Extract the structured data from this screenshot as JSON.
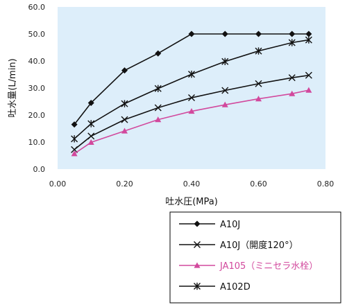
{
  "chart_data": {
    "type": "line",
    "title": "",
    "xlabel": "吐水圧(MPa)",
    "ylabel": "吐水量(L/min)",
    "xlim": [
      0.0,
      0.8
    ],
    "ylim": [
      0.0,
      60.0
    ],
    "x_ticks": [
      0.0,
      0.2,
      0.4,
      0.6,
      0.8
    ],
    "x_tick_labels": [
      "0.00",
      "0.20",
      "0.40",
      "0.60",
      "0.80"
    ],
    "y_ticks": [
      0,
      10,
      20,
      30,
      40,
      50,
      60
    ],
    "y_tick_labels": [
      "0.0",
      "10.0",
      "20.0",
      "30.0",
      "40.0",
      "50.0",
      "60.0"
    ],
    "grid": false,
    "plot_background": "#ddeefa",
    "legend_position": "bottom-right",
    "series": [
      {
        "name": "A10J",
        "color": "#111111",
        "marker": "diamond",
        "x": [
          0.05,
          0.1,
          0.2,
          0.3,
          0.4,
          0.5,
          0.6,
          0.7,
          0.75
        ],
        "y": [
          16.5,
          24.5,
          36.5,
          42.8,
          50.0,
          50.0,
          50.0,
          50.0,
          50.0
        ]
      },
      {
        "name": "A10J（開度120°）",
        "color": "#111111",
        "marker": "x",
        "x": [
          0.05,
          0.1,
          0.2,
          0.3,
          0.4,
          0.5,
          0.6,
          0.7,
          0.75
        ],
        "y": [
          7.2,
          12.2,
          18.3,
          22.7,
          26.4,
          29.1,
          31.6,
          33.8,
          34.7
        ]
      },
      {
        "name": "JA105（ミニセラ水栓）",
        "color": "#d2499d",
        "marker": "triangle",
        "x": [
          0.05,
          0.1,
          0.2,
          0.3,
          0.4,
          0.5,
          0.6,
          0.7,
          0.75
        ],
        "y": [
          5.7,
          9.9,
          14.1,
          18.3,
          21.4,
          23.8,
          26.0,
          27.9,
          29.2
        ]
      },
      {
        "name": "A102D",
        "color": "#111111",
        "marker": "asterisk",
        "x": [
          0.05,
          0.1,
          0.2,
          0.3,
          0.4,
          0.5,
          0.6,
          0.7,
          0.75
        ],
        "y": [
          11.2,
          16.8,
          24.2,
          29.8,
          35.1,
          39.8,
          43.7,
          46.8,
          47.8
        ]
      }
    ]
  }
}
